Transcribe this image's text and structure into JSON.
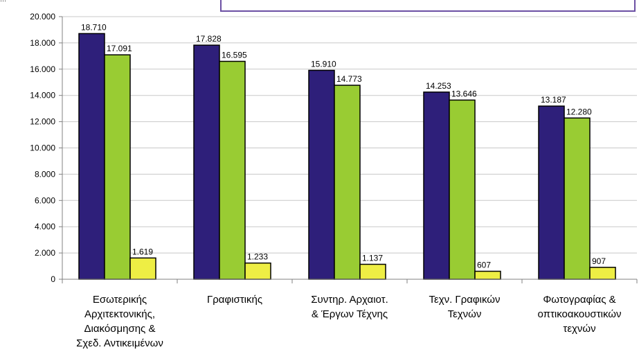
{
  "header": {
    "corner_text": "..."
  },
  "chart_data": {
    "type": "bar",
    "categories": [
      [
        "Εσωτερικής",
        "Αρχιτεκτονικής,",
        "Διακόσμησης &",
        "Σχεδ. Αντικειμένων"
      ],
      [
        "Γραφιστικής"
      ],
      [
        "Συντηρ. Αρχαιοτ.",
        "& Έργων Τέχνης"
      ],
      [
        "Τεχν. Γραφικών",
        "Τεχνών"
      ],
      [
        "Φωτογραφίας &",
        "οπτικοακουστικών",
        "τεχνών"
      ]
    ],
    "series": [
      {
        "values": [
          18710,
          17828,
          15910,
          14253,
          13187
        ],
        "labels": [
          "18.710",
          "17.828",
          "15.910",
          "14.253",
          "13.187"
        ],
        "color": "#2e1f7a"
      },
      {
        "values": [
          17091,
          16595,
          14773,
          13646,
          12280
        ],
        "labels": [
          "17.091",
          "16.595",
          "14.773",
          "13.646",
          "12.280"
        ],
        "color": "#99cc33"
      },
      {
        "values": [
          1619,
          1233,
          1137,
          607,
          907
        ],
        "labels": [
          "1.619",
          "1.233",
          "1.137",
          "607",
          "907"
        ],
        "color": "#eeee44"
      }
    ],
    "ylim": [
      0,
      20000
    ],
    "yticks": [
      "0",
      "2.000",
      "4.000",
      "6.000",
      "8.000",
      "10.000",
      "12.000",
      "14.000",
      "16.000",
      "18.000",
      "20.000"
    ],
    "grid": true,
    "title": "",
    "xlabel": "",
    "ylabel": ""
  }
}
